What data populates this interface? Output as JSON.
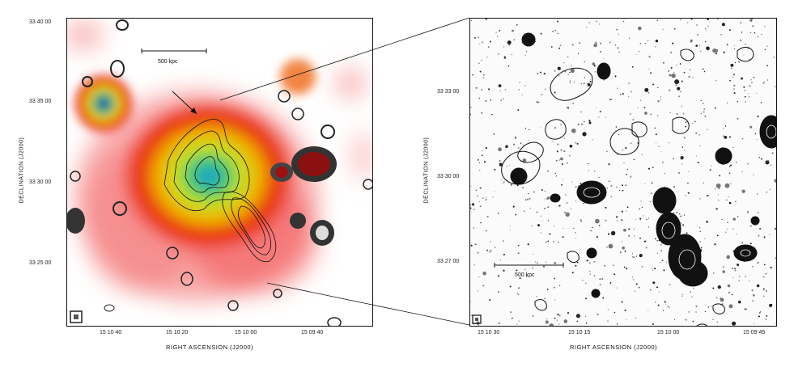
{
  "left": {
    "xlabel": "RIGHT ASCENSION (J2000)",
    "ylabel": "DECLINATION (J2000)",
    "xticks": [
      "15 10 40",
      "15 10 20",
      "15 10 00",
      "15 09 40"
    ],
    "yticks": [
      "33 40 00",
      "33 35 00",
      "33 30 00",
      "33 25 00"
    ],
    "scalebar": "500 kpc"
  },
  "right": {
    "xlabel": "RIGHT ASCENSION (J2000)",
    "ylabel": "DECLINATION (J2000)",
    "xticks": [
      "15 10 30",
      "15 10 15",
      "15 10 00",
      "15 09 45"
    ],
    "yticks": [
      "33 33 00",
      "33 30 00",
      "33 27 00"
    ],
    "scalebar": "500 kpc"
  }
}
